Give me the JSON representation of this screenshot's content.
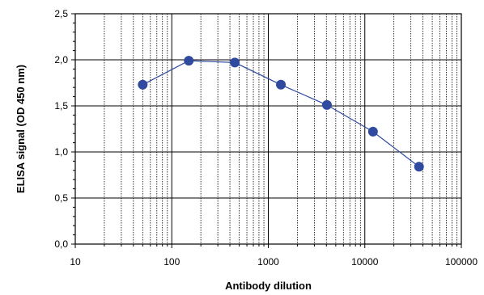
{
  "chart_data": {
    "type": "line",
    "title": "",
    "xlabel": "Antibody dilution",
    "ylabel": "ELISA signal (OD 450 nm)",
    "xscale": "log",
    "xlim": [
      10,
      100000
    ],
    "ylim": [
      0,
      2.5
    ],
    "grid": true,
    "legend": "none",
    "x_ticks": [
      "10",
      "100",
      "1000",
      "10000",
      "100000"
    ],
    "y_ticks": [
      "0,0",
      "0,5",
      "1,0",
      "1,5",
      "2,0",
      "2,5"
    ],
    "series": [
      {
        "color": "#2F4A9E",
        "points": [
          {
            "x": 50,
            "y": 1.73
          },
          {
            "x": 150,
            "y": 1.99
          },
          {
            "x": 450,
            "y": 1.97
          },
          {
            "x": 1350,
            "y": 1.73
          },
          {
            "x": 4050,
            "y": 1.51
          },
          {
            "x": 12150,
            "y": 1.22
          },
          {
            "x": 36450,
            "y": 0.84
          }
        ]
      }
    ]
  }
}
